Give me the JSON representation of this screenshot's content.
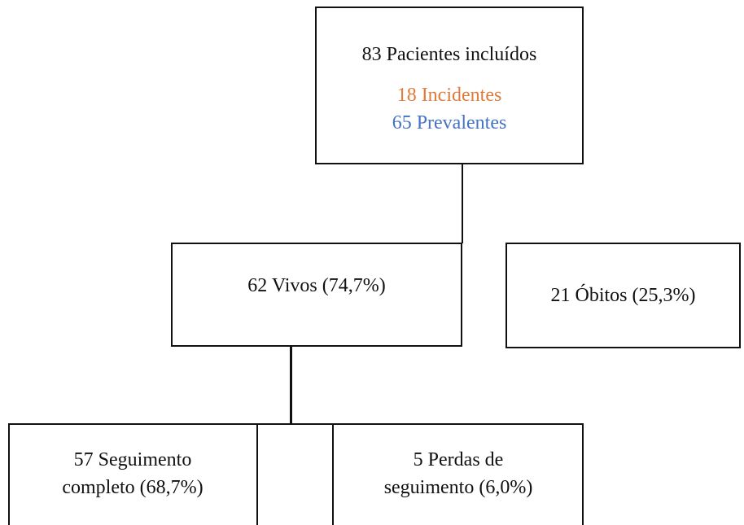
{
  "nodes": [
    {
      "lines": [
        "83 Pacientes incluídos"
      ],
      "sublines": [
        "18 Incidentes",
        "65 Prevalentes"
      ]
    },
    {
      "lines": [
        "62 Vivos (74,7%)"
      ]
    },
    {
      "lines": [
        "21 Óbitos (25,3%)"
      ]
    },
    {
      "lines": [
        "57 Seguimento",
        "completo (68,7%)"
      ]
    },
    {
      "lines": [
        "5 Perdas de",
        "seguimento (6,0%)"
      ]
    }
  ]
}
